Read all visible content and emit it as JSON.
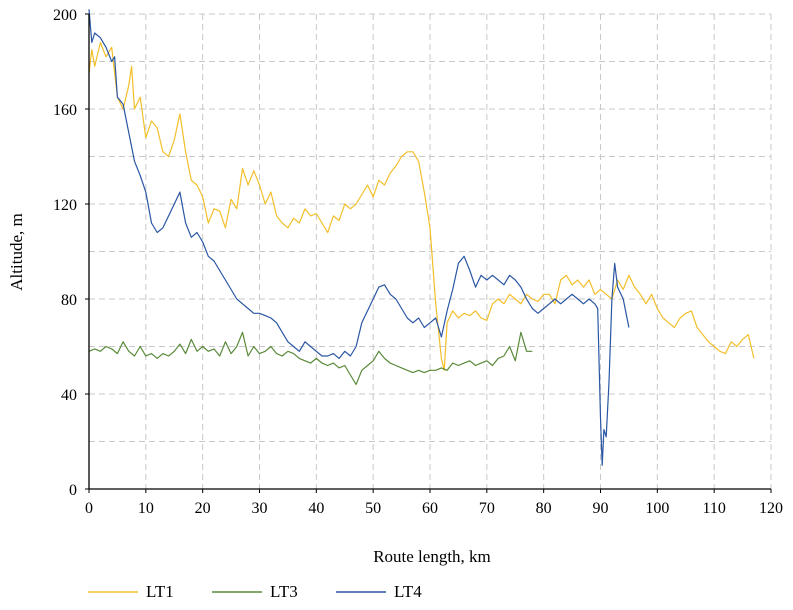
{
  "chart_data": {
    "type": "line",
    "title": "",
    "xlabel": "Route length, km",
    "ylabel": "Altitude, m",
    "xlim": [
      0,
      120
    ],
    "ylim": [
      0,
      200
    ],
    "xticks": [
      0,
      10,
      20,
      30,
      40,
      50,
      60,
      70,
      80,
      90,
      100,
      110,
      120
    ],
    "yticks": [
      0,
      40,
      80,
      120,
      160,
      200
    ],
    "grid": true,
    "legend_position": "bottom-left",
    "series": [
      {
        "name": "LT1",
        "color": "#f2bf2a",
        "x": [
          0,
          0.5,
          1,
          2,
          3,
          4,
          5,
          6,
          7,
          7.5,
          8,
          9,
          10,
          11,
          12,
          13,
          14,
          15,
          16,
          17,
          18,
          19,
          20,
          21,
          22,
          23,
          24,
          25,
          26,
          27,
          28,
          29,
          30,
          31,
          32,
          33,
          34,
          35,
          36,
          37,
          38,
          39,
          40,
          41,
          42,
          43,
          44,
          45,
          46,
          47,
          48,
          49,
          50,
          51,
          52,
          53,
          54,
          55,
          56,
          57,
          58,
          59,
          60,
          61,
          62,
          62.5,
          63,
          64,
          65,
          66,
          67,
          68,
          69,
          70,
          71,
          72,
          73,
          74,
          75,
          76,
          77,
          78,
          79,
          80,
          81,
          82,
          83,
          84,
          85,
          86,
          87,
          88,
          89,
          90,
          91,
          92,
          93,
          94,
          95,
          96,
          97,
          98,
          99,
          100,
          101,
          102,
          103,
          104,
          105,
          106,
          107,
          108,
          109,
          110,
          111,
          112,
          113,
          114,
          115,
          116,
          117
        ],
        "y": [
          175,
          185,
          178,
          188,
          182,
          186,
          165,
          160,
          170,
          178,
          160,
          165,
          148,
          155,
          152,
          142,
          140,
          147,
          158,
          142,
          130,
          128,
          123,
          112,
          118,
          117,
          110,
          122,
          118,
          135,
          128,
          134,
          128,
          120,
          125,
          115,
          112,
          110,
          114,
          112,
          118,
          115,
          116,
          112,
          108,
          115,
          113,
          120,
          118,
          120,
          124,
          128,
          123,
          130,
          128,
          133,
          136,
          140,
          142,
          142,
          138,
          125,
          110,
          78,
          55,
          50,
          70,
          75,
          72,
          74,
          73,
          75,
          72,
          71,
          78,
          80,
          78,
          82,
          80,
          78,
          82,
          80,
          79,
          82,
          82,
          78,
          88,
          90,
          86,
          88,
          85,
          88,
          82,
          84,
          82,
          80,
          88,
          84,
          90,
          85,
          82,
          78,
          82,
          76,
          72,
          70,
          68,
          72,
          74,
          75,
          68,
          65,
          62,
          60,
          58,
          57,
          62,
          60,
          63,
          65,
          55
        ]
      },
      {
        "name": "LT3",
        "color": "#5a8a3a",
        "x": [
          0,
          1,
          2,
          3,
          4,
          5,
          6,
          7,
          8,
          9,
          10,
          11,
          12,
          13,
          14,
          15,
          16,
          17,
          18,
          19,
          20,
          21,
          22,
          23,
          24,
          25,
          26,
          27,
          28,
          29,
          30,
          31,
          32,
          33,
          34,
          35,
          36,
          37,
          38,
          39,
          40,
          41,
          42,
          43,
          44,
          45,
          46,
          47,
          48,
          49,
          50,
          51,
          52,
          53,
          54,
          55,
          56,
          57,
          58,
          59,
          60,
          61,
          62,
          63,
          64,
          65,
          66,
          67,
          68,
          69,
          70,
          71,
          72,
          73,
          74,
          75,
          76,
          77,
          78
        ],
        "y": [
          58,
          59,
          58,
          60,
          59,
          57,
          62,
          58,
          56,
          60,
          56,
          57,
          55,
          57,
          56,
          58,
          61,
          57,
          63,
          58,
          60,
          58,
          59,
          56,
          62,
          57,
          60,
          66,
          56,
          60,
          57,
          58,
          60,
          57,
          56,
          58,
          57,
          55,
          54,
          53,
          55,
          53,
          52,
          53,
          51,
          52,
          48,
          44,
          50,
          52,
          54,
          58,
          55,
          53,
          52,
          51,
          50,
          49,
          50,
          49,
          50,
          50,
          51,
          50,
          53,
          52,
          53,
          54,
          52,
          53,
          54,
          52,
          55,
          56,
          60,
          54,
          66,
          58,
          58
        ]
      },
      {
        "name": "LT4",
        "color": "#2a56a4",
        "x": [
          0,
          0.5,
          1,
          2,
          3,
          4,
          4.5,
          5,
          6,
          7,
          8,
          9,
          10,
          11,
          12,
          13,
          14,
          15,
          16,
          17,
          18,
          19,
          20,
          21,
          22,
          23,
          24,
          25,
          26,
          27,
          28,
          29,
          30,
          31,
          32,
          33,
          34,
          35,
          36,
          37,
          38,
          39,
          40,
          41,
          42,
          43,
          44,
          45,
          46,
          47,
          48,
          49,
          50,
          51,
          52,
          53,
          54,
          55,
          56,
          57,
          58,
          59,
          60,
          61,
          62,
          63,
          64,
          65,
          66,
          67,
          68,
          69,
          70,
          71,
          72,
          73,
          74,
          75,
          76,
          77,
          78,
          79,
          80,
          81,
          82,
          83,
          84,
          85,
          86,
          87,
          88,
          89,
          89.5,
          90,
          90.3,
          90.6,
          91,
          91.5,
          92,
          92.5,
          93,
          94,
          95
        ],
        "y": [
          202,
          188,
          192,
          190,
          186,
          180,
          182,
          165,
          162,
          150,
          138,
          132,
          125,
          112,
          108,
          110,
          115,
          120,
          125,
          112,
          106,
          108,
          104,
          98,
          96,
          92,
          88,
          84,
          80,
          78,
          76,
          74,
          74,
          73,
          72,
          70,
          66,
          62,
          60,
          58,
          62,
          60,
          58,
          56,
          56,
          57,
          55,
          58,
          56,
          60,
          70,
          75,
          80,
          85,
          86,
          82,
          80,
          76,
          72,
          70,
          72,
          68,
          70,
          72,
          64,
          75,
          84,
          95,
          98,
          92,
          85,
          90,
          88,
          90,
          88,
          86,
          90,
          88,
          85,
          80,
          76,
          74,
          76,
          78,
          80,
          78,
          80,
          82,
          80,
          78,
          80,
          78,
          76,
          30,
          10,
          25,
          22,
          45,
          80,
          95,
          85,
          80,
          68
        ]
      }
    ]
  }
}
